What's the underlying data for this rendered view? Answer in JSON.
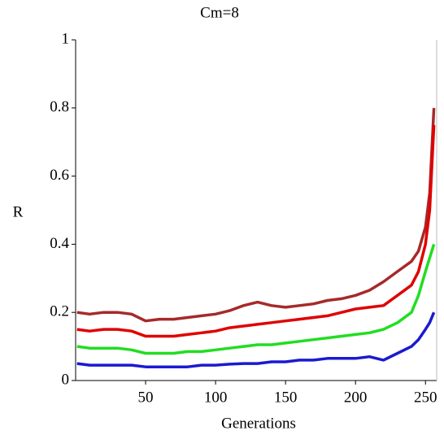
{
  "chart_data": {
    "type": "line",
    "title": "Cm=8",
    "x_label": "Generations",
    "y_label": "R",
    "x": [
      1,
      10,
      20,
      30,
      40,
      50,
      60,
      70,
      80,
      90,
      100,
      110,
      120,
      130,
      140,
      150,
      160,
      170,
      180,
      190,
      200,
      210,
      220,
      230,
      240,
      245,
      250,
      253,
      256
    ],
    "series": [
      {
        "color": "#a52a2a",
        "values": [
          0.2,
          0.195,
          0.2,
          0.2,
          0.195,
          0.175,
          0.18,
          0.18,
          0.185,
          0.19,
          0.195,
          0.205,
          0.22,
          0.23,
          0.22,
          0.215,
          0.22,
          0.225,
          0.235,
          0.24,
          0.25,
          0.265,
          0.29,
          0.32,
          0.35,
          0.38,
          0.45,
          0.55,
          0.8
        ]
      },
      {
        "color": "#e00000",
        "values": [
          0.15,
          0.145,
          0.15,
          0.15,
          0.145,
          0.13,
          0.13,
          0.13,
          0.135,
          0.14,
          0.145,
          0.155,
          0.16,
          0.165,
          0.17,
          0.175,
          0.18,
          0.185,
          0.19,
          0.2,
          0.21,
          0.215,
          0.22,
          0.25,
          0.28,
          0.32,
          0.4,
          0.5,
          0.75
        ]
      },
      {
        "color": "#22dd22",
        "values": [
          0.1,
          0.095,
          0.095,
          0.095,
          0.09,
          0.08,
          0.08,
          0.08,
          0.085,
          0.085,
          0.09,
          0.095,
          0.1,
          0.105,
          0.105,
          0.11,
          0.115,
          0.12,
          0.125,
          0.13,
          0.135,
          0.14,
          0.15,
          0.17,
          0.2,
          0.25,
          0.32,
          0.36,
          0.4
        ]
      },
      {
        "color": "#1a1ad0",
        "values": [
          0.05,
          0.045,
          0.045,
          0.045,
          0.045,
          0.04,
          0.04,
          0.04,
          0.04,
          0.045,
          0.045,
          0.048,
          0.05,
          0.05,
          0.055,
          0.055,
          0.06,
          0.06,
          0.065,
          0.065,
          0.065,
          0.07,
          0.06,
          0.08,
          0.1,
          0.12,
          0.15,
          0.17,
          0.2
        ]
      }
    ],
    "xlim": [
      0,
      258
    ],
    "ylim": [
      0,
      1
    ],
    "xticks": [
      50,
      100,
      150,
      200,
      250
    ],
    "yticks": [
      0,
      0.2,
      0.4,
      0.6,
      0.8,
      1
    ]
  }
}
